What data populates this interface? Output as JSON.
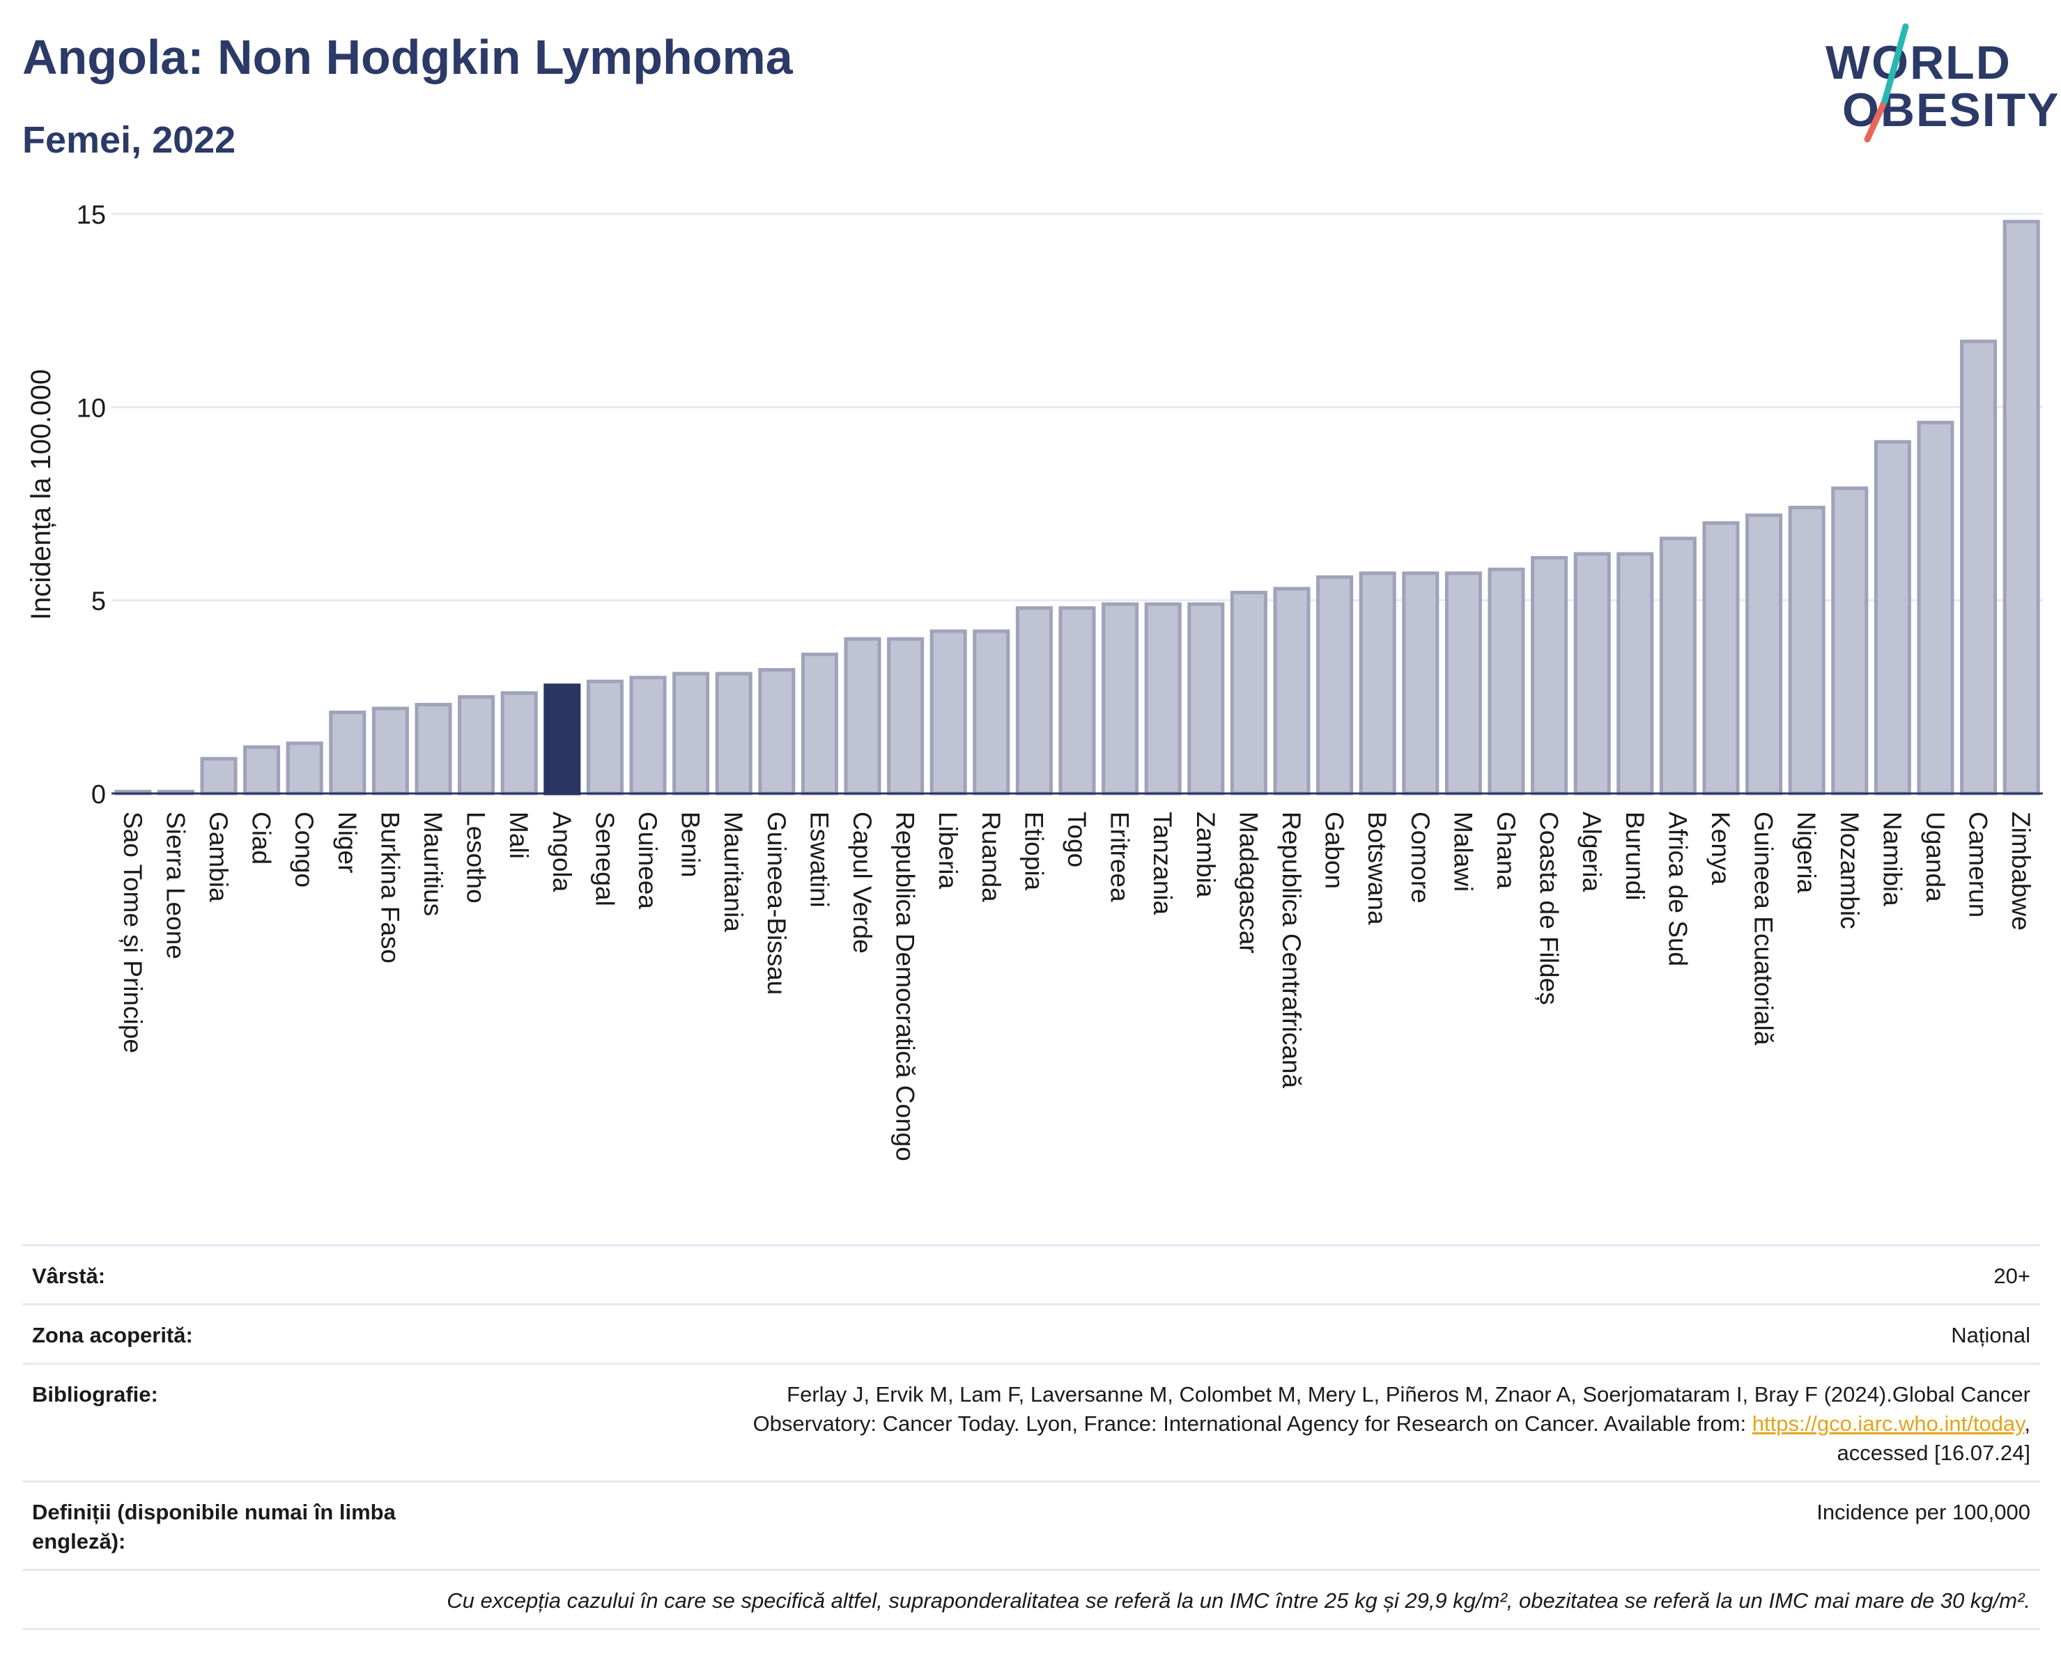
{
  "header": {
    "title": "Angola: Non Hodgkin Lymphoma",
    "subtitle": "Femei, 2022",
    "logo_line1": "WORLD",
    "logo_line2": "OBESITY"
  },
  "colors": {
    "title": "#2b3a67",
    "bar": "#bfc3d3",
    "bar_stroke": "#9ea3ba",
    "highlight": "#2b3561",
    "logo_teal": "#2ab7b1",
    "logo_coral": "#e8675a",
    "link": "#e3a41b"
  },
  "chart_data": {
    "type": "bar",
    "title": "Angola: Non Hodgkin Lymphoma",
    "subtitle": "Femei, 2022",
    "xlabel": "",
    "ylabel": "Incidența la 100.000",
    "ylim": [
      0,
      15
    ],
    "yticks": [
      0,
      5,
      10,
      15
    ],
    "grid": true,
    "highlight": "Angola",
    "categories": [
      "Sao Tome și Principe",
      "Sierra Leone",
      "Gambia",
      "Ciad",
      "Congo",
      "Niger",
      "Burkina Faso",
      "Mauritius",
      "Lesotho",
      "Mali",
      "Angola",
      "Senegal",
      "Guineea",
      "Benin",
      "Mauritania",
      "Guineea-Bissau",
      "Eswatini",
      "Capul Verde",
      "Republica Democratică Congo",
      "Liberia",
      "Ruanda",
      "Etiopia",
      "Togo",
      "Eritreea",
      "Tanzania",
      "Zambia",
      "Madagascar",
      "Republica Centrafricană",
      "Gabon",
      "Botswana",
      "Comore",
      "Malawi",
      "Ghana",
      "Coasta de Fildeș",
      "Algeria",
      "Burundi",
      "Africa de Sud",
      "Kenya",
      "Guineea Ecuatorială",
      "Nigeria",
      "Mozambic",
      "Namibia",
      "Uganda",
      "Camerun",
      "Zimbabwe"
    ],
    "values": [
      0.05,
      0.05,
      0.9,
      1.2,
      1.3,
      2.1,
      2.2,
      2.3,
      2.5,
      2.6,
      2.8,
      2.9,
      3.0,
      3.1,
      3.1,
      3.2,
      3.6,
      4.0,
      4.0,
      4.2,
      4.2,
      4.8,
      4.8,
      4.9,
      4.9,
      4.9,
      5.2,
      5.3,
      5.6,
      5.7,
      5.7,
      5.7,
      5.8,
      6.1,
      6.2,
      6.2,
      6.6,
      7.0,
      7.2,
      7.4,
      7.9,
      9.1,
      9.6,
      11.7,
      14.8
    ]
  },
  "meta": {
    "age_label": "Vârstă:",
    "age_value": "20+",
    "area_label": "Zona acoperită:",
    "area_value": "Național",
    "bib_label": "Bibliografie:",
    "bib_text1": "Ferlay J, Ervik M, Lam F, Laversanne M, Colombet M, Mery L, Piñeros M, Znaor A, Soerjomataram I, Bray F (2024).Global Cancer",
    "bib_text2": "Observatory: Cancer Today. Lyon, France: International Agency for Research on Cancer. Available from: ",
    "bib_link": "https://gco.iarc.who.int/today",
    "bib_text3": ",",
    "bib_text4": "accessed [16.07.24]",
    "def_label": "Definiții (disponibile numai în limba engleză):",
    "def_value": "Incidence per 100,000",
    "note": "Cu excepția cazului în care se specifică altfel, supraponderalitatea se referă la un IMC între 25 kg și 29,9 kg/m², obezitatea se referă la un IMC mai mare de 30 kg/m²."
  }
}
